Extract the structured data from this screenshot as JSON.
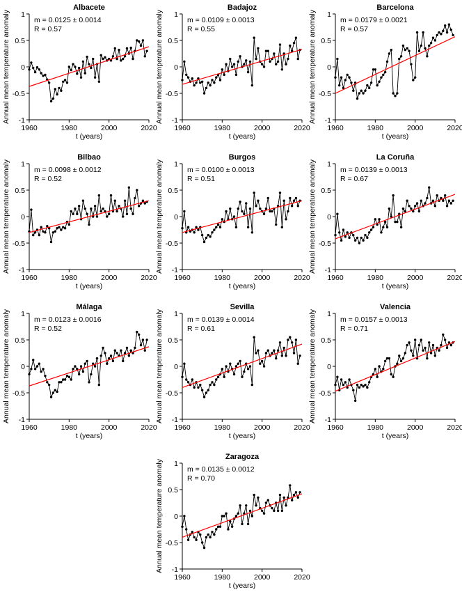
{
  "figure": {
    "xlabel": "t (years)",
    "ylabel": "Annual mean temperature anomaly",
    "xlim": [
      1960,
      2020
    ],
    "ylim": [
      -1,
      1
    ],
    "xticks": [
      1960,
      1980,
      2000,
      2020
    ],
    "yticks": [
      -1,
      -0.5,
      0,
      0.5,
      1
    ],
    "ytick_labels": [
      "-1",
      "-0.5",
      "0",
      "0.5",
      "1"
    ],
    "data_color": "#000000",
    "trend_color": "#ff0000",
    "years_start": 1960,
    "years_end": 2019
  },
  "chart_data": [
    {
      "type": "line",
      "title": "Albacete",
      "stat_m": "m = 0.0125 ± 0.0014",
      "stat_r": "R = 0.57",
      "trend": [
        [
          1960,
          -0.37
        ],
        [
          2020,
          0.38
        ]
      ],
      "values": [
        -0.05,
        0.08,
        -0.02,
        -0.1,
        -0.01,
        -0.05,
        -0.12,
        -0.17,
        -0.15,
        -0.24,
        -0.3,
        -0.65,
        -0.6,
        -0.42,
        -0.52,
        -0.4,
        -0.45,
        -0.28,
        -0.25,
        -0.3,
        0.0,
        -0.06,
        0.05,
        0.0,
        -0.13,
        -0.02,
        -0.2,
        0.1,
        -0.12,
        0.19,
        0.05,
        -0.02,
        0.15,
        -0.2,
        0.05,
        -0.28,
        0.22,
        0.15,
        0.18,
        0.12,
        0.15,
        0.12,
        0.2,
        0.35,
        0.15,
        0.32,
        0.12,
        0.15,
        0.2,
        0.35,
        0.25,
        0.36,
        0.15,
        0.3,
        0.5,
        0.48,
        0.4,
        0.5,
        0.2,
        0.3
      ]
    },
    {
      "type": "line",
      "title": "Badajoz",
      "stat_m": "m = 0.0109 ± 0.0013",
      "stat_r": "R = 0.55",
      "trend": [
        [
          1960,
          -0.33
        ],
        [
          2020,
          0.33
        ]
      ],
      "values": [
        -0.25,
        0.1,
        -0.15,
        -0.2,
        -0.28,
        -0.22,
        -0.35,
        -0.3,
        -0.22,
        -0.3,
        -0.28,
        -0.5,
        -0.4,
        -0.3,
        -0.35,
        -0.25,
        -0.3,
        -0.2,
        -0.15,
        -0.25,
        -0.05,
        -0.15,
        0.05,
        -0.08,
        0.15,
        0.0,
        0.05,
        -0.15,
        0.1,
        0.2,
        0.0,
        0.05,
        0.12,
        -0.1,
        0.1,
        -0.35,
        0.55,
        0.15,
        0.35,
        0.1,
        0.05,
        0.0,
        0.3,
        0.3,
        0.1,
        0.15,
        0.25,
        0.05,
        0.1,
        0.42,
        -0.05,
        0.25,
        0.05,
        0.15,
        0.4,
        0.3,
        0.45,
        0.55,
        0.15,
        0.32
      ]
    },
    {
      "type": "line",
      "title": "Barcelona",
      "stat_m": "m = 0.0179 ± 0.0021",
      "stat_r": "R = 0.57",
      "trend": [
        [
          1960,
          -0.5
        ],
        [
          2020,
          0.57
        ]
      ],
      "values": [
        -0.2,
        0.15,
        -0.35,
        -0.2,
        -0.4,
        -0.25,
        -0.15,
        -0.2,
        -0.3,
        -0.45,
        -0.3,
        -0.6,
        -0.5,
        -0.45,
        -0.5,
        -0.45,
        -0.35,
        -0.4,
        -0.3,
        -0.05,
        -0.05,
        -0.35,
        -0.28,
        -0.2,
        -0.15,
        -0.1,
        0.1,
        0.25,
        0.32,
        -0.5,
        -0.55,
        -0.5,
        0.15,
        0.2,
        0.4,
        0.32,
        0.35,
        0.3,
        0.05,
        -0.25,
        -0.2,
        0.65,
        0.3,
        0.4,
        0.65,
        0.35,
        0.2,
        0.4,
        0.45,
        0.55,
        0.5,
        0.6,
        0.65,
        0.62,
        0.68,
        0.78,
        0.65,
        0.8,
        0.7,
        0.6
      ]
    },
    {
      "type": "line",
      "title": "Bilbao",
      "stat_m": "m = 0.0098 ± 0.0012",
      "stat_r": "R = 0.52",
      "trend": [
        [
          1960,
          -0.3
        ],
        [
          2020,
          0.3
        ]
      ],
      "values": [
        -0.28,
        0.13,
        -0.35,
        -0.3,
        -0.25,
        -0.35,
        -0.2,
        -0.28,
        -0.3,
        -0.18,
        -0.22,
        -0.48,
        -0.3,
        -0.28,
        -0.22,
        -0.2,
        -0.25,
        -0.2,
        -0.22,
        -0.1,
        -0.15,
        0.1,
        0.05,
        0.15,
        0.05,
        0.2,
        -0.05,
        0.3,
        0.15,
        0.05,
        -0.15,
        0.15,
        0.0,
        0.2,
        0.0,
        0.4,
        0.1,
        0.15,
        0.1,
        0.0,
        0.05,
        0.4,
        0.1,
        0.3,
        0.1,
        0.2,
        0.15,
        0.0,
        0.3,
        0.05,
        0.55,
        0.15,
        0.05,
        0.35,
        0.5,
        0.2,
        0.25,
        0.3,
        0.25,
        0.28
      ]
    },
    {
      "type": "line",
      "title": "Burgos",
      "stat_m": "m = 0.0100 ± 0.0013",
      "stat_r": "R = 0.51",
      "trend": [
        [
          1960,
          -0.3
        ],
        [
          2020,
          0.3
        ]
      ],
      "values": [
        -0.22,
        0.1,
        -0.3,
        -0.2,
        -0.28,
        -0.25,
        -0.3,
        -0.2,
        -0.25,
        -0.2,
        -0.35,
        -0.48,
        -0.4,
        -0.35,
        -0.38,
        -0.3,
        -0.25,
        -0.2,
        -0.15,
        -0.2,
        -0.05,
        -0.1,
        0.1,
        -0.05,
        0.15,
        -0.05,
        0.0,
        -0.2,
        0.15,
        0.28,
        0.1,
        0.05,
        0.25,
        -0.2,
        0.15,
        -0.3,
        0.45,
        0.2,
        0.3,
        0.15,
        0.1,
        0.05,
        0.15,
        0.35,
        0.1,
        0.1,
        0.15,
        -0.15,
        0.2,
        0.45,
        -0.2,
        0.3,
        -0.05,
        0.1,
        0.35,
        0.2,
        0.3,
        0.35,
        0.2,
        0.3
      ]
    },
    {
      "type": "line",
      "title": "La Coruña",
      "stat_m": "m = 0.0139 ± 0.0013",
      "stat_r": "R = 0.67",
      "trend": [
        [
          1960,
          -0.42
        ],
        [
          2020,
          0.42
        ]
      ],
      "values": [
        -0.35,
        0.05,
        -0.3,
        -0.45,
        -0.25,
        -0.38,
        -0.3,
        -0.4,
        -0.3,
        -0.35,
        -0.45,
        -0.4,
        -0.5,
        -0.4,
        -0.45,
        -0.35,
        -0.4,
        -0.3,
        -0.25,
        -0.2,
        -0.05,
        -0.15,
        -0.05,
        -0.3,
        -0.2,
        -0.1,
        -0.2,
        0.15,
        0.0,
        0.4,
        -0.1,
        -0.1,
        0.05,
        -0.2,
        0.15,
        0.1,
        0.3,
        0.2,
        0.15,
        0.1,
        0.2,
        0.25,
        0.1,
        0.3,
        0.2,
        0.25,
        0.35,
        0.55,
        0.25,
        0.3,
        0.2,
        0.4,
        0.3,
        0.35,
        0.3,
        0.4,
        0.2,
        0.3,
        0.25,
        0.3
      ]
    },
    {
      "type": "line",
      "title": "Málaga",
      "stat_m": "m = 0.0123 ± 0.0016",
      "stat_r": "R = 0.52",
      "trend": [
        [
          1960,
          -0.37
        ],
        [
          2020,
          0.37
        ]
      ],
      "values": [
        -0.15,
        -0.05,
        0.12,
        -0.05,
        0.0,
        0.05,
        -0.1,
        -0.05,
        -0.18,
        -0.3,
        -0.35,
        -0.58,
        -0.5,
        -0.45,
        -0.48,
        -0.3,
        -0.3,
        -0.25,
        -0.25,
        -0.18,
        -0.2,
        -0.25,
        -0.05,
        0.0,
        -0.05,
        -0.15,
        0.0,
        -0.1,
        0.05,
        0.1,
        -0.3,
        -0.15,
        0.05,
        0.0,
        0.15,
        -0.35,
        0.2,
        0.35,
        0.25,
        0.05,
        0.15,
        0.2,
        0.1,
        0.3,
        0.25,
        0.2,
        0.3,
        0.1,
        0.25,
        0.35,
        0.2,
        0.3,
        0.25,
        0.35,
        0.65,
        0.6,
        0.4,
        0.5,
        0.3,
        0.5
      ]
    },
    {
      "type": "line",
      "title": "Sevilla",
      "stat_m": "m = 0.0139 ± 0.0014",
      "stat_r": "R = 0.61",
      "trend": [
        [
          1960,
          -0.4
        ],
        [
          2020,
          0.42
        ]
      ],
      "values": [
        -0.2,
        0.05,
        -0.25,
        -0.3,
        -0.35,
        -0.25,
        -0.4,
        -0.3,
        -0.4,
        -0.35,
        -0.45,
        -0.58,
        -0.5,
        -0.45,
        -0.35,
        -0.3,
        -0.35,
        -0.25,
        -0.2,
        -0.15,
        -0.05,
        -0.2,
        0.0,
        -0.1,
        0.05,
        -0.05,
        -0.15,
        0.0,
        0.05,
        0.1,
        -0.2,
        -0.1,
        0.05,
        -0.05,
        0.0,
        -0.35,
        0.55,
        0.25,
        0.3,
        0.05,
        0.1,
        0.0,
        0.25,
        0.3,
        0.2,
        0.25,
        0.3,
        0.15,
        0.3,
        0.45,
        0.2,
        0.35,
        0.2,
        0.5,
        0.55,
        0.45,
        0.25,
        0.5,
        0.05,
        0.2
      ]
    },
    {
      "type": "line",
      "title": "Valencia",
      "stat_m": "m = 0.0157 ± 0.0013",
      "stat_r": "R = 0.71",
      "trend": [
        [
          1960,
          -0.47
        ],
        [
          2020,
          0.47
        ]
      ],
      "values": [
        -0.35,
        -0.2,
        -0.45,
        -0.25,
        -0.35,
        -0.3,
        -0.4,
        -0.25,
        -0.35,
        -0.45,
        -0.65,
        -0.35,
        -0.4,
        -0.35,
        -0.38,
        -0.35,
        -0.4,
        -0.3,
        -0.2,
        -0.15,
        -0.05,
        -0.2,
        0.0,
        -0.1,
        -0.05,
        0.1,
        0.15,
        0.15,
        -0.15,
        -0.2,
        0.0,
        0.05,
        0.2,
        0.1,
        0.15,
        0.25,
        0.4,
        0.45,
        0.3,
        0.2,
        0.5,
        0.15,
        0.4,
        0.5,
        0.3,
        0.35,
        0.15,
        0.45,
        0.25,
        0.4,
        0.2,
        0.35,
        0.3,
        0.4,
        0.6,
        0.5,
        0.35,
        0.45,
        0.4,
        0.45
      ]
    },
    {
      "type": "line",
      "title": "Zaragoza",
      "stat_m": "m = 0.0135 ± 0.0012",
      "stat_r": "R = 0.70",
      "trend": [
        [
          1960,
          -0.4
        ],
        [
          2020,
          0.42
        ]
      ],
      "values": [
        -0.2,
        0.0,
        -0.25,
        -0.45,
        -0.35,
        -0.3,
        -0.4,
        -0.45,
        -0.3,
        -0.35,
        -0.5,
        -0.6,
        -0.4,
        -0.35,
        -0.4,
        -0.3,
        -0.35,
        -0.25,
        -0.2,
        -0.2,
        0.0,
        0.0,
        0.05,
        -0.25,
        -0.1,
        -0.2,
        -0.05,
        0.0,
        0.05,
        0.2,
        -0.15,
        0.05,
        0.2,
        -0.15,
        0.1,
        0.0,
        0.4,
        0.2,
        0.35,
        0.15,
        0.1,
        0.05,
        0.25,
        0.3,
        0.2,
        0.15,
        0.1,
        0.25,
        0.1,
        0.4,
        0.1,
        0.35,
        0.2,
        0.35,
        0.58,
        0.3,
        0.4,
        0.45,
        0.35,
        0.45
      ]
    }
  ]
}
